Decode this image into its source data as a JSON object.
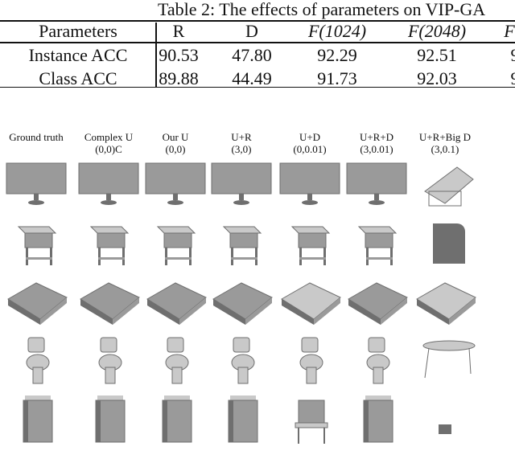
{
  "table": {
    "caption": "Table 2: The effects of parameters on VIP-GA",
    "headers": [
      "Parameters",
      "R",
      "D",
      "F(1024)",
      "F(2048)",
      "F"
    ],
    "rows": [
      {
        "label": "Instance ACC",
        "values": [
          "90.53",
          "47.80",
          "92.29",
          "92.51",
          "9"
        ]
      },
      {
        "label": "Class ACC",
        "values": [
          "89.88",
          "44.49",
          "91.73",
          "92.03",
          "9"
        ]
      }
    ]
  },
  "figure": {
    "columns": [
      {
        "title": "Ground truth",
        "params": ""
      },
      {
        "title": "Complex U",
        "params": "(0,0)C"
      },
      {
        "title": "Our U",
        "params": "(0,0)"
      },
      {
        "title": "U+R",
        "params": "(3,0)"
      },
      {
        "title": "U+D",
        "params": "(0,0.01)"
      },
      {
        "title": "U+R+D",
        "params": "(3,0.01)"
      },
      {
        "title": "U+R+Big D",
        "params": "(3,0.1)"
      }
    ],
    "rows": [
      "monitor",
      "nightstand",
      "bed",
      "toilet",
      "dresser"
    ]
  }
}
